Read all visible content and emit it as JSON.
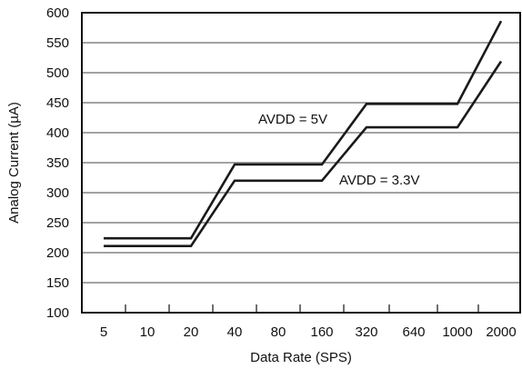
{
  "chart_data": {
    "type": "line",
    "title": "",
    "xlabel": "Data Rate (SPS)",
    "ylabel": "Analog Current (µA)",
    "categories": [
      "5",
      "10",
      "20",
      "40",
      "80",
      "160",
      "320",
      "640",
      "1000",
      "2000"
    ],
    "ylim": [
      100,
      600
    ],
    "yticks": [
      "100",
      "150",
      "200",
      "250",
      "300",
      "350",
      "400",
      "450",
      "500",
      "550",
      "600"
    ],
    "grid": true,
    "legend": "none",
    "series": [
      {
        "name": "AVDD = 5V",
        "color": "#1a1a1a",
        "points": [
          {
            "x": "5",
            "y": 224
          },
          {
            "x": "10",
            "y": 224
          },
          {
            "x": "20",
            "y": 224
          },
          {
            "x": "40",
            "y": 347
          },
          {
            "x": "80",
            "y": 347
          },
          {
            "x": "160",
            "y": 347
          },
          {
            "x": "320",
            "y": 448
          },
          {
            "x": "640",
            "y": 448
          },
          {
            "x": "1000",
            "y": 448
          },
          {
            "x": "2000",
            "y": 586
          }
        ]
      },
      {
        "name": "AVDD = 3.3V",
        "color": "#1a1a1a",
        "points": [
          {
            "x": "5",
            "y": 211
          },
          {
            "x": "10",
            "y": 211
          },
          {
            "x": "20",
            "y": 211
          },
          {
            "x": "40",
            "y": 320
          },
          {
            "x": "80",
            "y": 320
          },
          {
            "x": "160",
            "y": 320
          },
          {
            "x": "320",
            "y": 409
          },
          {
            "x": "640",
            "y": 409
          },
          {
            "x": "1000",
            "y": 409
          },
          {
            "x": "2000",
            "y": 519
          }
        ]
      }
    ]
  }
}
